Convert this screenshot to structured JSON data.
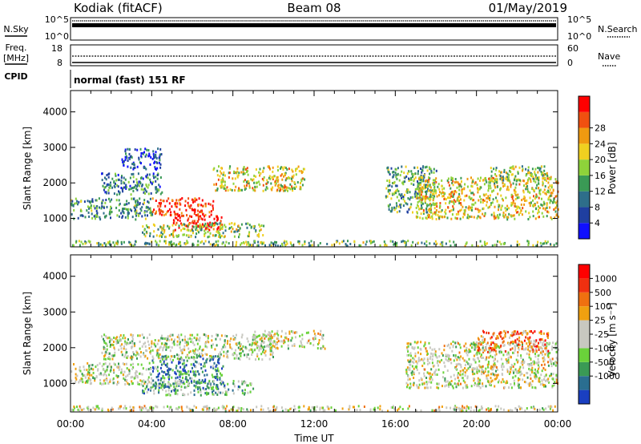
{
  "header": {
    "station": "Kodiak (fitACF)",
    "beam": "Beam 08",
    "date": "01/May/2019"
  },
  "noise_panel": {
    "left_label": "N.Sky",
    "right_label": "N.Search",
    "top_tick": "10^5",
    "bottom_tick": "10^0"
  },
  "freq_panel": {
    "label_line1": "Freq.",
    "label_line2": "[MHz]",
    "left_ticks": [
      "18",
      "8"
    ],
    "right_label": "Nave",
    "right_ticks": [
      "60",
      "0"
    ],
    "cpid_label": "CPID",
    "cpid_text": "normal (fast) 151 RF"
  },
  "chart_data": [
    {
      "type": "heatmap",
      "name": "power",
      "xlabel": "",
      "ylabel": "Slant Range [km]",
      "xlim": [
        "00:00",
        "24:00"
      ],
      "ylim": [
        200,
        4600
      ],
      "y_ticks": [
        1000,
        2000,
        3000,
        4000
      ],
      "x_ticks": [
        "00:00",
        "04:00",
        "08:00",
        "12:00",
        "16:00",
        "20:00",
        "00:00"
      ],
      "colorbar": {
        "label": "Power [dB]",
        "ticks": [
          "4",
          "8",
          "12",
          "16",
          "20",
          "24",
          "28"
        ],
        "colors": [
          "#1010ff",
          "#1f3fa0",
          "#2e6e8a",
          "#3a9a55",
          "#8ed23a",
          "#f0d020",
          "#f09a10",
          "#f05010",
          "#ff0000"
        ]
      },
      "regions": [
        {
          "t": [
            0.0,
            4.0
          ],
          "r": [
            1000,
            1600
          ],
          "level": 0.35
        },
        {
          "t": [
            1.5,
            4.5
          ],
          "r": [
            1700,
            2300
          ],
          "level": 0.3
        },
        {
          "t": [
            2.5,
            4.5
          ],
          "r": [
            2400,
            3000
          ],
          "level": 0.2
        },
        {
          "t": [
            4.0,
            7.0
          ],
          "r": [
            1100,
            1600
          ],
          "level": 0.9
        },
        {
          "t": [
            5.0,
            7.5
          ],
          "r": [
            700,
            1100
          ],
          "level": 1.0
        },
        {
          "t": [
            7.0,
            11.5
          ],
          "r": [
            1800,
            2500
          ],
          "level": 0.6
        },
        {
          "t": [
            3.5,
            9.5
          ],
          "r": [
            500,
            900
          ],
          "level": 0.5
        },
        {
          "t": [
            15.5,
            18.0
          ],
          "r": [
            1200,
            2500
          ],
          "level": 0.4
        },
        {
          "t": [
            17.0,
            24.0
          ],
          "r": [
            1000,
            2200
          ],
          "level": 0.6
        },
        {
          "t": [
            20.5,
            23.5
          ],
          "r": [
            2000,
            2500
          ],
          "level": 0.5
        },
        {
          "t": [
            0.0,
            24.0
          ],
          "r": [
            250,
            400
          ],
          "level": 0.45
        }
      ]
    },
    {
      "type": "heatmap",
      "name": "velocity",
      "xlabel": "Time UT",
      "ylabel": "Slant Range [km]",
      "xlim": [
        "00:00",
        "24:00"
      ],
      "ylim": [
        200,
        4600
      ],
      "y_ticks": [
        1000,
        2000,
        3000,
        4000
      ],
      "x_ticks": [
        "00:00",
        "04:00",
        "08:00",
        "12:00",
        "16:00",
        "20:00",
        "00:00"
      ],
      "colorbar": {
        "label": "Velocity [m s⁻¹]",
        "ticks": [
          "1000",
          "500",
          "100",
          "25",
          "-25",
          "-100",
          "-500",
          "-1000"
        ],
        "colors": [
          "#1a3fc0",
          "#2a6e90",
          "#3a9a55",
          "#6ad23a",
          "#c8c8c0",
          "#c8c8c0",
          "#f0a010",
          "#f07010",
          "#f03010",
          "#ff0000"
        ]
      },
      "regions": [
        {
          "t": [
            0.0,
            4.0
          ],
          "r": [
            1000,
            1600
          ],
          "level": 0.45
        },
        {
          "t": [
            1.5,
            10.0
          ],
          "r": [
            1700,
            2400
          ],
          "level": 0.45
        },
        {
          "t": [
            4.0,
            7.5
          ],
          "r": [
            900,
            1800
          ],
          "level": 0.2
        },
        {
          "t": [
            3.5,
            9.0
          ],
          "r": [
            700,
            1100
          ],
          "level": 0.3
        },
        {
          "t": [
            9.0,
            12.5
          ],
          "r": [
            2000,
            2500
          ],
          "level": 0.5
        },
        {
          "t": [
            16.5,
            24.0
          ],
          "r": [
            900,
            2200
          ],
          "level": 0.5
        },
        {
          "t": [
            20.0,
            23.5
          ],
          "r": [
            1900,
            2500
          ],
          "level": 0.75
        },
        {
          "t": [
            0.0,
            24.0
          ],
          "r": [
            250,
            400
          ],
          "level": 0.5
        }
      ]
    }
  ]
}
